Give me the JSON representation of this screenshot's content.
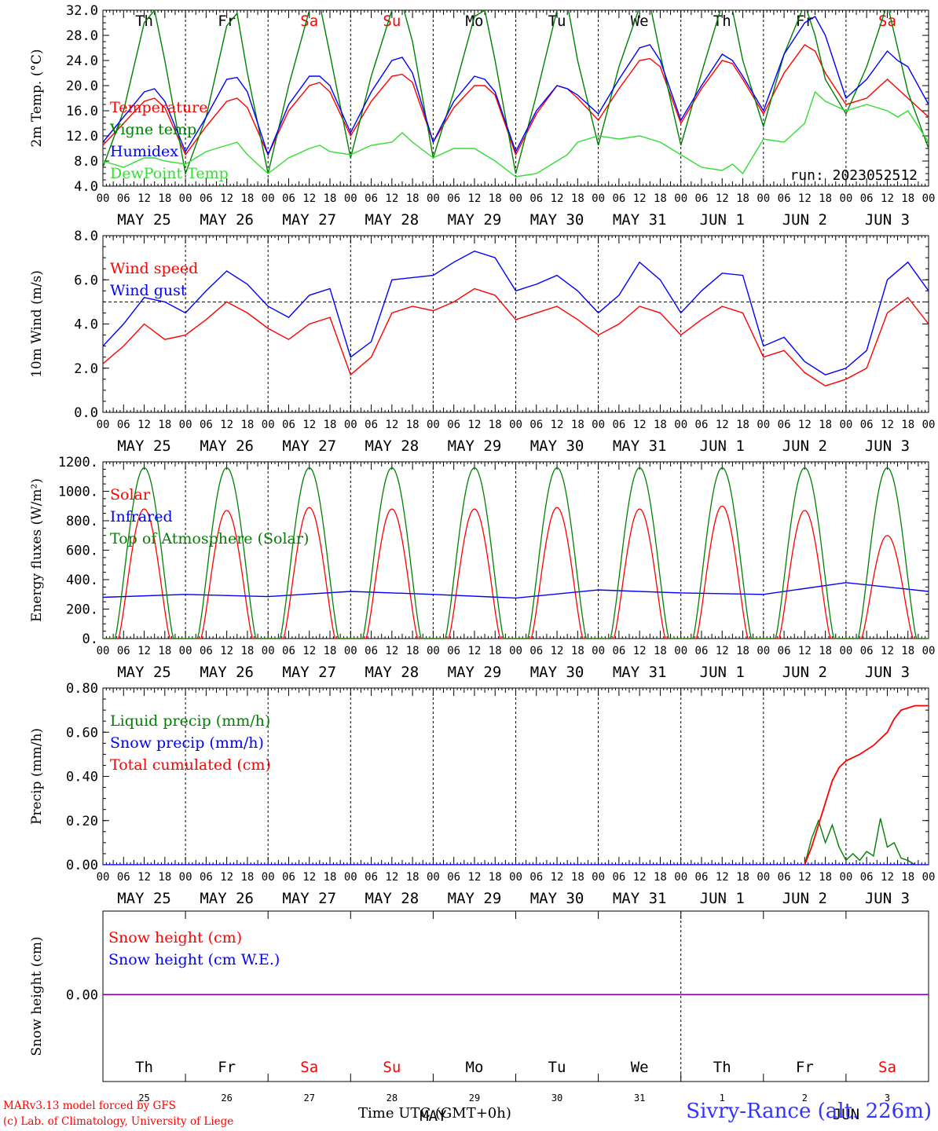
{
  "chart_data": [
    {
      "type": "line",
      "ylabel": "2m Temp. (°C)",
      "ylim": [
        4.0,
        32.0
      ],
      "yticks": [
        "4.0",
        "8.0",
        "12.0",
        "16.0",
        "20.0",
        "24.0",
        "28.0",
        "32.0"
      ],
      "x_unit": "hours since 2023-05-25 00 UTC",
      "x": [
        0,
        6,
        12,
        15,
        18,
        24,
        30,
        36,
        39,
        42,
        48,
        54,
        60,
        63,
        66,
        72,
        78,
        84,
        87,
        90,
        96,
        102,
        108,
        111,
        114,
        120,
        126,
        132,
        135,
        138,
        144,
        150,
        156,
        159,
        162,
        168,
        174,
        180,
        183,
        186,
        192,
        198,
        204,
        207,
        210,
        216,
        222,
        228,
        231,
        234,
        240
      ],
      "legend": [
        "Temperature",
        "Vigne temp",
        "Humidex",
        "DewPoint Temp"
      ],
      "series": [
        {
          "name": "Temperature",
          "color": "#ff0000",
          "values": [
            10.5,
            14.0,
            17.5,
            18.0,
            16.5,
            9.0,
            13.5,
            17.5,
            18.0,
            16.5,
            9.0,
            16.0,
            20.0,
            20.5,
            19.0,
            12.0,
            17.5,
            21.5,
            21.8,
            20.5,
            11.0,
            16.5,
            20.0,
            20.0,
            18.5,
            9.0,
            15.5,
            20.0,
            19.5,
            18.0,
            14.5,
            19.5,
            24.0,
            24.3,
            23.0,
            14.0,
            19.5,
            24.0,
            23.5,
            21.0,
            15.5,
            22.0,
            26.5,
            25.5,
            22.0,
            17.0,
            18.0,
            21.0,
            19.5,
            18.0,
            15.0
          ]
        },
        {
          "name": "Vigne temp",
          "color": "#008000",
          "values": [
            7.0,
            16.0,
            30.0,
            32.0,
            24.0,
            6.0,
            15.0,
            29.5,
            31.5,
            22.0,
            6.0,
            20.0,
            32.0,
            33.0,
            25.0,
            8.5,
            21.5,
            32.0,
            33.0,
            27.0,
            8.5,
            19.0,
            31.0,
            32.0,
            24.0,
            6.0,
            18.5,
            32.0,
            33.0,
            24.0,
            10.5,
            23.0,
            32.5,
            33.0,
            25.0,
            10.5,
            22.0,
            33.0,
            32.0,
            24.0,
            13.5,
            25.0,
            33.0,
            28.0,
            21.0,
            15.5,
            23.0,
            33.0,
            26.0,
            19.0,
            10.0
          ]
        },
        {
          "name": "Humidex",
          "color": "#0000ff",
          "values": [
            11.0,
            15.0,
            19.0,
            19.5,
            17.5,
            9.5,
            15.0,
            21.0,
            21.3,
            19.0,
            9.0,
            17.0,
            21.5,
            21.5,
            20.0,
            12.5,
            19.0,
            24.0,
            24.5,
            22.0,
            11.0,
            17.5,
            21.5,
            21.0,
            19.0,
            9.5,
            16.0,
            20.0,
            19.5,
            18.5,
            15.5,
            21.0,
            26.0,
            26.5,
            24.0,
            14.5,
            20.0,
            25.0,
            24.0,
            21.5,
            16.0,
            25.0,
            30.0,
            31.0,
            28.0,
            18.0,
            21.0,
            25.5,
            24.0,
            23.0,
            17.0
          ]
        },
        {
          "name": "DewPoint Temp",
          "color": "#33dd33",
          "values": [
            8.0,
            7.0,
            8.5,
            8.5,
            8.0,
            7.5,
            9.5,
            10.5,
            11.0,
            9.0,
            6.0,
            8.5,
            10.0,
            10.5,
            9.5,
            9.0,
            10.5,
            11.0,
            12.5,
            11.0,
            8.5,
            10.0,
            10.0,
            9.0,
            8.0,
            5.5,
            6.0,
            8.0,
            9.0,
            11.0,
            12.0,
            11.5,
            12.0,
            11.5,
            11.0,
            9.0,
            7.0,
            6.5,
            7.5,
            6.0,
            11.5,
            11.0,
            14.0,
            19.0,
            17.5,
            16.0,
            17.0,
            16.0,
            15.0,
            16.0,
            11.0
          ]
        }
      ],
      "annotation": "run: 2023052512"
    },
    {
      "type": "line",
      "ylabel": "10m Wind (m/s)",
      "ylim": [
        0.0,
        8.0
      ],
      "yticks": [
        "0.0",
        "2.0",
        "4.0",
        "6.0",
        "8.0"
      ],
      "reference_line": 5.0,
      "x_unit": "hours since 2023-05-25 00 UTC",
      "x": [
        0,
        6,
        12,
        18,
        24,
        30,
        36,
        42,
        48,
        54,
        60,
        66,
        72,
        78,
        84,
        90,
        96,
        102,
        108,
        114,
        120,
        126,
        132,
        138,
        144,
        150,
        156,
        162,
        168,
        174,
        180,
        186,
        192,
        198,
        204,
        210,
        216,
        222,
        228,
        234,
        240
      ],
      "legend": [
        "Wind speed",
        "Wind gust"
      ],
      "series": [
        {
          "name": "Wind speed",
          "color": "#ff0000",
          "values": [
            2.2,
            3.0,
            4.0,
            3.3,
            3.5,
            4.2,
            5.0,
            4.5,
            3.8,
            3.3,
            4.0,
            4.3,
            1.7,
            2.5,
            4.5,
            4.8,
            4.6,
            5.0,
            5.6,
            5.3,
            4.2,
            4.5,
            4.8,
            4.2,
            3.5,
            4.0,
            4.8,
            4.5,
            3.5,
            4.2,
            4.8,
            4.5,
            2.5,
            2.8,
            1.8,
            1.2,
            1.5,
            2.0,
            4.5,
            5.2,
            4.0
          ]
        },
        {
          "name": "Wind gust",
          "color": "#0000ff",
          "values": [
            3.0,
            4.0,
            5.2,
            5.0,
            4.5,
            5.5,
            6.4,
            5.8,
            4.8,
            4.3,
            5.3,
            5.6,
            2.5,
            3.2,
            6.0,
            6.1,
            6.2,
            6.8,
            7.3,
            7.0,
            5.5,
            5.8,
            6.2,
            5.5,
            4.5,
            5.3,
            6.8,
            6.0,
            4.5,
            5.5,
            6.3,
            6.2,
            3.0,
            3.4,
            2.3,
            1.7,
            2.0,
            2.8,
            6.0,
            6.8,
            5.5
          ]
        }
      ]
    },
    {
      "type": "line",
      "ylabel": "Energy fluxes (W/m²)",
      "ylim": [
        0,
        1200
      ],
      "yticks": [
        "0.",
        "200.",
        "400.",
        "600.",
        "800.",
        "1000.",
        "1200."
      ],
      "x_unit": "hours since 2023-05-25 00 UTC",
      "legend": [
        "Solar",
        "Infrared",
        "Top of Atmosphere (Solar)"
      ],
      "series": [
        {
          "name": "Solar",
          "color": "#ff0000",
          "daily_peak": [
            880,
            870,
            890,
            880,
            880,
            890,
            880,
            900,
            870,
            700
          ],
          "sunrise_hour": 4.5,
          "sunset_hour": 19.5
        },
        {
          "name": "Infrared",
          "color": "#0000ff",
          "x": [
            0,
            24,
            48,
            72,
            96,
            120,
            144,
            168,
            192,
            216,
            240
          ],
          "values": [
            280,
            300,
            285,
            320,
            300,
            275,
            330,
            310,
            300,
            380,
            320
          ]
        },
        {
          "name": "Top of Atmosphere (Solar)",
          "color": "#008000",
          "daily_peak": [
            1160,
            1160,
            1160,
            1160,
            1160,
            1160,
            1160,
            1160,
            1160,
            1160
          ],
          "sunrise_hour": 3.5,
          "sunset_hour": 20.5
        }
      ]
    },
    {
      "type": "line",
      "ylabel": "Precip (mm/h)",
      "ylim": [
        0.0,
        0.8
      ],
      "yticks": [
        "0.00",
        "0.20",
        "0.40",
        "0.60",
        "0.80"
      ],
      "x_unit": "hours since 2023-05-25 00 UTC",
      "legend": [
        "Liquid precip (mm/h)",
        "Snow precip (mm/h)",
        "Total cumulated (cm)"
      ],
      "series": [
        {
          "name": "Liquid precip (mm/h)",
          "color": "#008000",
          "x": [
            204,
            206,
            208,
            210,
            212,
            214,
            216,
            218,
            220,
            222,
            224,
            226,
            228,
            230,
            232,
            234,
            236
          ],
          "values": [
            0.0,
            0.12,
            0.2,
            0.1,
            0.18,
            0.08,
            0.02,
            0.05,
            0.02,
            0.06,
            0.04,
            0.21,
            0.08,
            0.1,
            0.03,
            0.02,
            0.0
          ]
        },
        {
          "name": "Snow precip (mm/h)",
          "color": "#0000ff",
          "x": [
            0,
            240
          ],
          "values": [
            0.0,
            0.0
          ]
        },
        {
          "name": "Total cumulated (cm)",
          "color": "#ff0000",
          "x": [
            204,
            206,
            208,
            210,
            212,
            214,
            216,
            220,
            224,
            228,
            230,
            232,
            236,
            240
          ],
          "values": [
            0.0,
            0.08,
            0.18,
            0.28,
            0.38,
            0.44,
            0.47,
            0.5,
            0.54,
            0.6,
            0.66,
            0.7,
            0.72,
            0.72
          ]
        }
      ]
    },
    {
      "type": "line",
      "ylabel": "Snow height (cm)",
      "yticks": [
        "0.00"
      ],
      "legend": [
        "Snow height (cm)",
        "Snow height (cm W.E.)"
      ],
      "series": [
        {
          "name": "Snow height (cm)",
          "color": "#ff0000",
          "x": [
            0,
            240
          ],
          "values": [
            0.0,
            0.0
          ]
        },
        {
          "name": "Snow height (cm W.E.)",
          "color": "#0000ff",
          "x": [
            0,
            240
          ],
          "values": [
            0.0,
            0.0
          ]
        }
      ]
    }
  ],
  "x_axis": {
    "hour_ticks": [
      "00",
      "06",
      "12",
      "18"
    ],
    "final_tick": "00",
    "dates": [
      "MAY 25",
      "MAY 26",
      "MAY 27",
      "MAY 28",
      "MAY 29",
      "MAY 30",
      "MAY 31",
      "JUN  1",
      "JUN  2",
      "JUN  3"
    ],
    "weekdays": [
      "Th",
      "Fr",
      "Sa",
      "Su",
      "Mo",
      "Tu",
      "We",
      "Th",
      "Fr",
      "Sa"
    ],
    "weekday_colors": [
      "#000000",
      "#000000",
      "#ff0000",
      "#ff0000",
      "#000000",
      "#000000",
      "#000000",
      "#000000",
      "#000000",
      "#ff0000"
    ],
    "day_numbers": [
      "25",
      "26",
      "27",
      "28",
      "29",
      "30",
      "31",
      "1",
      "2",
      "3"
    ],
    "bottom_month_may": "MAY",
    "bottom_month_jun": "JUN",
    "xlabel": "Time UTC (GMT+0h)"
  },
  "footer": {
    "credit_line1": "MARv3.13 model forced by GFS",
    "credit_line2": "(c) Lab. of Climatology, University of Liege",
    "station": "Sivry-Rance (alt. 226m)"
  }
}
